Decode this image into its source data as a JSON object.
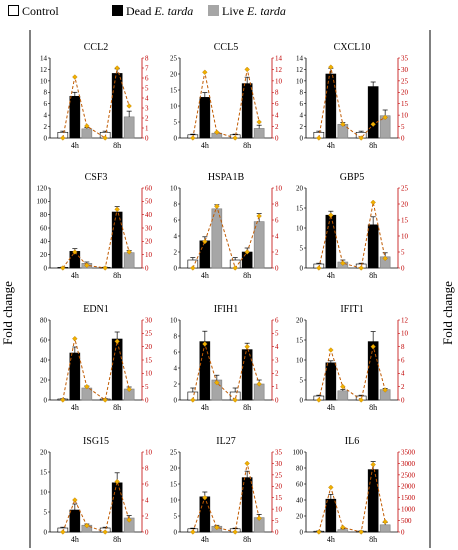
{
  "legend": {
    "control": "Control",
    "dead_prefix": "Dead ",
    "dead_italic": "E. tarda",
    "live_prefix": "Live ",
    "live_italic": "E. tarda"
  },
  "y_axis_label_left": "Fold change",
  "y_axis_label_right": "Fold change",
  "colors": {
    "control": "#ffffff",
    "dead": "#000000",
    "live": "#a6a6a6",
    "line": "#c05a00",
    "marker": "#f0b000",
    "right_axis": "#c00000"
  },
  "chart_data": [
    {
      "type": "bar",
      "title": "CCL2",
      "categories": [
        "4h",
        "8h"
      ],
      "ylim": [
        0,
        14
      ],
      "yticks": [
        0,
        2,
        4,
        6,
        8,
        10,
        12,
        14
      ],
      "series": [
        {
          "name": "Control",
          "values": [
            1.0,
            1.0
          ],
          "errors": [
            0.2,
            0.2
          ]
        },
        {
          "name": "Dead E. tarda",
          "values": [
            7.3,
            11.3
          ],
          "errors": [
            0.7,
            0.8
          ]
        },
        {
          "name": "Live E. tarda",
          "values": [
            1.6,
            3.7
          ],
          "errors": [
            0.2,
            1.0
          ]
        }
      ],
      "secondary": {
        "ylim": [
          0,
          8
        ],
        "yticks": [
          0,
          1,
          2,
          3,
          4,
          5,
          6,
          7,
          8
        ],
        "values": [
          0,
          6.1,
          1.2,
          0,
          7.0,
          3.2
        ]
      }
    },
    {
      "type": "bar",
      "title": "CCL5",
      "categories": [
        "4h",
        "8h"
      ],
      "ylim": [
        0,
        25
      ],
      "yticks": [
        0,
        5,
        10,
        15,
        20,
        25
      ],
      "series": [
        {
          "name": "Control",
          "values": [
            1.0,
            1.0
          ],
          "errors": [
            0.2,
            0.2
          ]
        },
        {
          "name": "Dead E. tarda",
          "values": [
            12.7,
            17.0
          ],
          "errors": [
            1.5,
            2.0
          ]
        },
        {
          "name": "Live E. tarda",
          "values": [
            1.5,
            3.0
          ],
          "errors": [
            0.3,
            1.0
          ]
        }
      ],
      "secondary": {
        "ylim": [
          0,
          14
        ],
        "yticks": [
          0,
          2,
          4,
          6,
          8,
          10,
          12,
          14
        ],
        "values": [
          0,
          11.5,
          1.0,
          0,
          12.0,
          2.8
        ]
      }
    },
    {
      "type": "bar",
      "title": "CXCL10",
      "categories": [
        "4h",
        "8h"
      ],
      "ylim": [
        0,
        14
      ],
      "yticks": [
        0,
        2,
        4,
        6,
        8,
        10,
        12,
        14
      ],
      "series": [
        {
          "name": "Control",
          "values": [
            1.0,
            1.0
          ],
          "errors": [
            0.2,
            0.2
          ]
        },
        {
          "name": "Dead E. tarda",
          "values": [
            11.2,
            9.0
          ],
          "errors": [
            1.0,
            0.8
          ]
        },
        {
          "name": "Live E. tarda",
          "values": [
            2.4,
            3.9
          ],
          "errors": [
            0.3,
            1.0
          ]
        }
      ],
      "secondary": {
        "ylim": [
          0,
          35
        ],
        "yticks": [
          0,
          5,
          10,
          15,
          20,
          25,
          30,
          35
        ],
        "values": [
          0,
          31.0,
          6.0,
          0,
          6.0,
          9.0
        ]
      }
    },
    {
      "type": "bar",
      "title": "CSF3",
      "categories": [
        "4h",
        "8h"
      ],
      "ylim": [
        0,
        120
      ],
      "yticks": [
        0,
        20,
        40,
        60,
        80,
        100,
        120
      ],
      "series": [
        {
          "name": "Control",
          "values": [
            1.0,
            1.0
          ],
          "errors": [
            0.3,
            0.3
          ]
        },
        {
          "name": "Dead E. tarda",
          "values": [
            25,
            84
          ],
          "errors": [
            4,
            8
          ]
        },
        {
          "name": "Live E. tarda",
          "values": [
            7,
            23
          ],
          "errors": [
            2,
            3
          ]
        }
      ],
      "secondary": {
        "ylim": [
          0,
          60
        ],
        "yticks": [
          0,
          10,
          20,
          30,
          40,
          50,
          60
        ],
        "values": [
          0,
          12.0,
          2.0,
          0,
          44.0,
          12.0
        ]
      }
    },
    {
      "type": "bar",
      "title": "HSPA1B",
      "categories": [
        "4h",
        "8h"
      ],
      "ylim": [
        0,
        10
      ],
      "yticks": [
        0,
        2,
        4,
        6,
        8,
        10
      ],
      "series": [
        {
          "name": "Control",
          "values": [
            1.0,
            1.0
          ],
          "errors": [
            0.3,
            0.3
          ]
        },
        {
          "name": "Dead E. tarda",
          "values": [
            3.4,
            2.0
          ],
          "errors": [
            0.5,
            0.5
          ]
        },
        {
          "name": "Live E. tarda",
          "values": [
            7.4,
            5.8
          ],
          "errors": [
            0.5,
            1.0
          ]
        }
      ],
      "secondary": {
        "ylim": [
          0,
          10
        ],
        "yticks": [
          0,
          2,
          4,
          6,
          8,
          10
        ],
        "values": [
          0,
          3.3,
          7.7,
          0,
          2.0,
          6.5
        ]
      }
    },
    {
      "type": "bar",
      "title": "GBP5",
      "categories": [
        "4h",
        "8h"
      ],
      "ylim": [
        0,
        20
      ],
      "yticks": [
        0,
        5,
        10,
        15,
        20
      ],
      "series": [
        {
          "name": "Control",
          "values": [
            1.0,
            1.0
          ],
          "errors": [
            0.2,
            0.2
          ]
        },
        {
          "name": "Dead E. tarda",
          "values": [
            13.2,
            10.8
          ],
          "errors": [
            1.0,
            2.0
          ]
        },
        {
          "name": "Live E. tarda",
          "values": [
            1.5,
            2.8
          ],
          "errors": [
            0.5,
            1.0
          ]
        }
      ],
      "secondary": {
        "ylim": [
          0,
          25
        ],
        "yticks": [
          0,
          5,
          10,
          15,
          20,
          25
        ],
        "values": [
          0,
          16.5,
          1.5,
          0,
          20.5,
          3.0
        ]
      }
    },
    {
      "type": "bar",
      "title": "EDN1",
      "categories": [
        "4h",
        "8h"
      ],
      "ylim": [
        0,
        80
      ],
      "yticks": [
        0,
        20,
        40,
        60,
        80
      ],
      "series": [
        {
          "name": "Control",
          "values": [
            1.0,
            1.0
          ],
          "errors": [
            0.3,
            0.3
          ]
        },
        {
          "name": "Dead E. tarda",
          "values": [
            47,
            61
          ],
          "errors": [
            6,
            7
          ]
        },
        {
          "name": "Live E. tarda",
          "values": [
            12,
            11
          ],
          "errors": [
            2,
            2
          ]
        }
      ],
      "secondary": {
        "ylim": [
          0,
          30
        ],
        "yticks": [
          0,
          5,
          10,
          15,
          20,
          25,
          30
        ],
        "values": [
          0,
          23.0,
          5.0,
          0,
          22.0,
          4.0
        ]
      }
    },
    {
      "type": "bar",
      "title": "IFIH1",
      "categories": [
        "4h",
        "8h"
      ],
      "ylim": [
        0,
        10
      ],
      "yticks": [
        0,
        2,
        4,
        6,
        8,
        10
      ],
      "series": [
        {
          "name": "Control",
          "values": [
            1.0,
            1.0
          ],
          "errors": [
            0.5,
            0.5
          ]
        },
        {
          "name": "Dead E. tarda",
          "values": [
            7.3,
            6.3
          ],
          "errors": [
            1.3,
            0.8
          ]
        },
        {
          "name": "Live E. tarda",
          "values": [
            2.5,
            2.0
          ],
          "errors": [
            0.6,
            0.5
          ]
        }
      ],
      "secondary": {
        "ylim": [
          0,
          6
        ],
        "yticks": [
          0,
          1,
          2,
          3,
          4,
          5,
          6
        ],
        "values": [
          0,
          4.2,
          1.3,
          0,
          4.0,
          1.2
        ]
      }
    },
    {
      "type": "bar",
      "title": "IFIT1",
      "categories": [
        "4h",
        "8h"
      ],
      "ylim": [
        0,
        20
      ],
      "yticks": [
        0,
        5,
        10,
        15,
        20
      ],
      "series": [
        {
          "name": "Control",
          "values": [
            1.0,
            1.0
          ],
          "errors": [
            0.2,
            0.2
          ]
        },
        {
          "name": "Dead E. tarda",
          "values": [
            9.3,
            14.6
          ],
          "errors": [
            0.5,
            2.5
          ]
        },
        {
          "name": "Live E. tarda",
          "values": [
            2.3,
            2.6
          ],
          "errors": [
            0.3,
            0.3
          ]
        }
      ],
      "secondary": {
        "ylim": [
          0,
          12
        ],
        "yticks": [
          0,
          2,
          4,
          6,
          8,
          10,
          12
        ],
        "values": [
          0,
          7.5,
          2.0,
          0,
          8.0,
          1.5
        ]
      }
    },
    {
      "type": "bar",
      "title": "ISG15",
      "categories": [
        "4h",
        "8h"
      ],
      "ylim": [
        0,
        20
      ],
      "yticks": [
        0,
        5,
        10,
        15,
        20
      ],
      "series": [
        {
          "name": "Control",
          "values": [
            1.0,
            1.0
          ],
          "errors": [
            0.2,
            0.2
          ]
        },
        {
          "name": "Dead E. tarda",
          "values": [
            5.5,
            12.3
          ],
          "errors": [
            1.5,
            2.5
          ]
        },
        {
          "name": "Live E. tarda",
          "values": [
            1.7,
            3.5
          ],
          "errors": [
            0.3,
            0.6
          ]
        }
      ],
      "secondary": {
        "ylim": [
          0,
          10
        ],
        "yticks": [
          0,
          2,
          4,
          6,
          8,
          10
        ],
        "values": [
          0,
          4.0,
          0.8,
          0,
          6.3,
          1.5
        ]
      }
    },
    {
      "type": "bar",
      "title": "IL27",
      "categories": [
        "4h",
        "8h"
      ],
      "ylim": [
        0,
        25
      ],
      "yticks": [
        0,
        5,
        10,
        15,
        20,
        25
      ],
      "series": [
        {
          "name": "Control",
          "values": [
            1.0,
            1.0
          ],
          "errors": [
            0.2,
            0.2
          ]
        },
        {
          "name": "Dead E. tarda",
          "values": [
            11.0,
            17.0
          ],
          "errors": [
            1.5,
            2.0
          ]
        },
        {
          "name": "Live E. tarda",
          "values": [
            1.8,
            4.5
          ],
          "errors": [
            0.3,
            1.0
          ]
        }
      ],
      "secondary": {
        "ylim": [
          0,
          35
        ],
        "yticks": [
          0,
          5,
          10,
          15,
          20,
          25,
          30,
          35
        ],
        "values": [
          0,
          15.0,
          2.0,
          0,
          30.0,
          6.0
        ]
      }
    },
    {
      "type": "bar",
      "title": "IL6",
      "categories": [
        "4h",
        "8h"
      ],
      "ylim": [
        0,
        100
      ],
      "yticks": [
        0,
        20,
        40,
        60,
        80,
        100
      ],
      "series": [
        {
          "name": "Control",
          "values": [
            1.0,
            1.0
          ],
          "errors": [
            0.3,
            0.3
          ]
        },
        {
          "name": "Dead E. tarda",
          "values": [
            41,
            78
          ],
          "errors": [
            6,
            10
          ]
        },
        {
          "name": "Live E. tarda",
          "values": [
            3,
            9
          ],
          "errors": [
            1,
            3
          ]
        }
      ],
      "secondary": {
        "ylim": [
          0,
          3500
        ],
        "yticks": [
          0,
          500,
          1000,
          1500,
          2000,
          2500,
          3000,
          3500
        ],
        "values": [
          0,
          1950,
          200,
          0,
          2950,
          450
        ]
      }
    }
  ]
}
